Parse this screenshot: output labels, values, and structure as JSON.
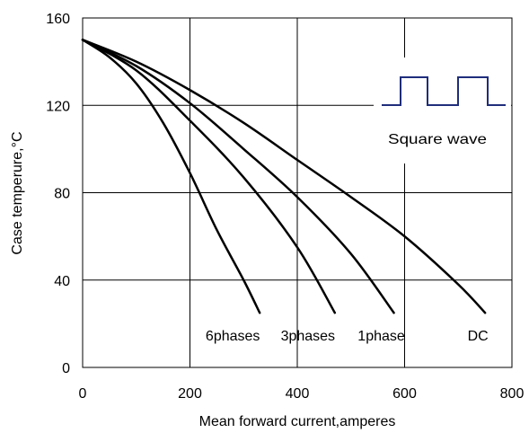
{
  "chart_data": {
    "type": "line",
    "title": "",
    "xlabel": "Mean forward current,amperes",
    "ylabel": "Case temperure,°C",
    "xlim": [
      0,
      800
    ],
    "ylim": [
      0,
      160
    ],
    "xticks": [
      0,
      200,
      400,
      600,
      800
    ],
    "yticks": [
      0,
      40,
      80,
      120,
      160
    ],
    "grid": true,
    "series": [
      {
        "name": "DC",
        "x": [
          0,
          100,
          200,
          300,
          400,
          500,
          600,
          700,
          750
        ],
        "y": [
          150,
          140,
          127,
          112,
          95,
          78,
          60,
          38,
          25
        ]
      },
      {
        "name": "1phase",
        "x": [
          0,
          100,
          200,
          300,
          400,
          500,
          580
        ],
        "y": [
          150,
          138,
          121,
          100,
          78,
          52,
          25
        ]
      },
      {
        "name": "3phases",
        "x": [
          0,
          100,
          200,
          300,
          400,
          470
        ],
        "y": [
          150,
          136,
          113,
          87,
          55,
          25
        ]
      },
      {
        "name": "6phases",
        "x": [
          0,
          50,
          100,
          150,
          200,
          250,
          300,
          330
        ],
        "y": [
          150,
          142,
          130,
          112,
          89,
          63,
          40,
          25
        ]
      }
    ],
    "inset": {
      "label": "Square wave",
      "waveform_color": "#1f2d7b"
    },
    "colors": {
      "curve": "#000000",
      "grid": "#000000",
      "waveform": "#1f2d7b"
    }
  }
}
